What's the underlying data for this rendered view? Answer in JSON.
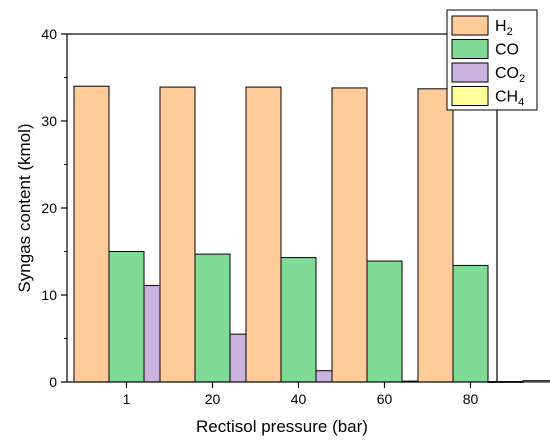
{
  "chart_data": {
    "type": "bar",
    "xlabel": "Rectisol pressure (bar)",
    "ylabel": "Syngas content (kmol)",
    "categories": [
      "1",
      "20",
      "40",
      "60",
      "80"
    ],
    "ylim": [
      0,
      40
    ],
    "yticks": [
      0,
      10,
      20,
      30,
      40
    ],
    "grid": false,
    "legend_position": "top-right",
    "series": [
      {
        "name": "H",
        "sub": "2",
        "color": "#FFCC99",
        "values": [
          34.0,
          33.9,
          33.9,
          33.8,
          33.7
        ]
      },
      {
        "name": "CO",
        "sub": "",
        "color": "#7FDB96",
        "values": [
          15.0,
          14.7,
          14.3,
          13.9,
          13.4
        ]
      },
      {
        "name": "CO",
        "sub": "2",
        "color": "#C9B2DD",
        "values": [
          11.1,
          5.5,
          1.3,
          0.1,
          0.05
        ]
      },
      {
        "name": "CH",
        "sub": "4",
        "color": "#FFFF99",
        "values": [
          0.15,
          0.15,
          0.15,
          0.15,
          0.15
        ]
      }
    ]
  }
}
